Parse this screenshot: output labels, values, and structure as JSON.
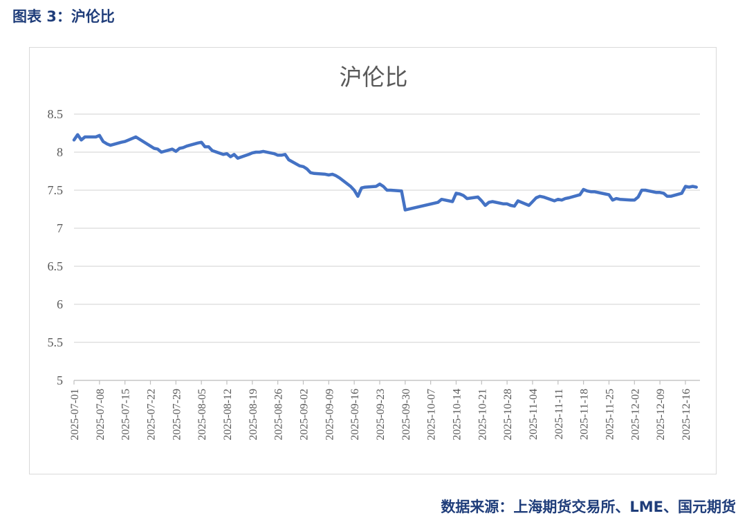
{
  "figure_caption": "图表 3：沪伦比",
  "source_note": "数据来源：上海期货交易所、LME、国元期货",
  "colors": {
    "line": "#4472c4",
    "grid": "#d9d9d9",
    "caption": "#1f3d7a",
    "axis_text": "#595959"
  },
  "chart_data": {
    "type": "line",
    "title": "沪伦比",
    "xlabel": "",
    "ylabel": "",
    "ylim": [
      5,
      8.5
    ],
    "yticks": [
      "5",
      "5.5",
      "6",
      "6.5",
      "7",
      "7.5",
      "8",
      "8.5"
    ],
    "x_start": "2025-07-01",
    "x_end": "2025-12-20",
    "xticks": [
      "2025-07-01",
      "2025-07-08",
      "2025-07-15",
      "2025-07-22",
      "2025-07-29",
      "2025-08-05",
      "2025-08-12",
      "2025-08-19",
      "2025-08-26",
      "2025-09-02",
      "2025-09-09",
      "2025-09-16",
      "2025-09-23",
      "2025-09-30",
      "2025-10-07",
      "2025-10-14",
      "2025-10-21",
      "2025-10-28",
      "2025-11-04",
      "2025-11-11",
      "2025-11-18",
      "2025-11-25",
      "2025-12-02",
      "2025-12-09",
      "2025-12-16"
    ],
    "grid": true,
    "legend": "none",
    "series": [
      {
        "x": [
          "2025-07-01",
          "2025-07-02",
          "2025-07-03",
          "2025-07-04",
          "2025-07-07",
          "2025-07-08",
          "2025-07-09",
          "2025-07-10",
          "2025-07-11",
          "2025-07-14",
          "2025-07-15",
          "2025-07-16",
          "2025-07-17",
          "2025-07-18",
          "2025-07-21",
          "2025-07-22",
          "2025-07-23",
          "2025-07-24",
          "2025-07-25",
          "2025-07-28",
          "2025-07-29",
          "2025-07-30",
          "2025-07-31",
          "2025-08-01",
          "2025-08-04",
          "2025-08-05",
          "2025-08-06",
          "2025-08-07",
          "2025-08-08",
          "2025-08-11",
          "2025-08-12",
          "2025-08-13",
          "2025-08-14",
          "2025-08-15",
          "2025-08-18",
          "2025-08-19",
          "2025-08-20",
          "2025-08-21",
          "2025-08-22",
          "2025-08-25",
          "2025-08-26",
          "2025-08-27",
          "2025-08-28",
          "2025-08-29",
          "2025-09-01",
          "2025-09-02",
          "2025-09-03",
          "2025-09-04",
          "2025-09-05",
          "2025-09-08",
          "2025-09-09",
          "2025-09-10",
          "2025-09-11",
          "2025-09-12",
          "2025-09-15",
          "2025-09-16",
          "2025-09-17",
          "2025-09-18",
          "2025-09-19",
          "2025-09-22",
          "2025-09-23",
          "2025-09-24",
          "2025-09-25",
          "2025-09-26",
          "2025-09-29",
          "2025-09-30",
          "2025-10-09",
          "2025-10-10",
          "2025-10-13",
          "2025-10-14",
          "2025-10-15",
          "2025-10-16",
          "2025-10-17",
          "2025-10-20",
          "2025-10-21",
          "2025-10-22",
          "2025-10-23",
          "2025-10-24",
          "2025-10-27",
          "2025-10-28",
          "2025-10-29",
          "2025-10-30",
          "2025-10-31",
          "2025-11-03",
          "2025-11-04",
          "2025-11-05",
          "2025-11-06",
          "2025-11-07",
          "2025-11-10",
          "2025-11-11",
          "2025-11-12",
          "2025-11-13",
          "2025-11-14",
          "2025-11-17",
          "2025-11-18",
          "2025-11-19",
          "2025-11-20",
          "2025-11-21",
          "2025-11-24",
          "2025-11-25",
          "2025-11-26",
          "2025-11-27",
          "2025-11-28",
          "2025-12-01",
          "2025-12-02",
          "2025-12-03",
          "2025-12-04",
          "2025-12-05",
          "2025-12-08",
          "2025-12-09",
          "2025-12-10",
          "2025-12-11",
          "2025-12-12",
          "2025-12-15",
          "2025-12-16",
          "2025-12-17",
          "2025-12-18",
          "2025-12-19"
        ],
        "values": [
          8.16,
          8.23,
          8.16,
          8.2,
          8.2,
          8.22,
          8.14,
          8.11,
          8.09,
          8.13,
          8.14,
          8.16,
          8.18,
          8.2,
          8.11,
          8.08,
          8.05,
          8.04,
          8.0,
          8.04,
          8.01,
          8.05,
          8.06,
          8.08,
          8.12,
          8.13,
          8.07,
          8.07,
          8.02,
          7.97,
          7.98,
          7.94,
          7.97,
          7.92,
          7.97,
          7.99,
          8.0,
          8.0,
          8.01,
          7.98,
          7.96,
          7.96,
          7.97,
          7.9,
          7.82,
          7.81,
          7.78,
          7.73,
          7.72,
          7.71,
          7.7,
          7.71,
          7.69,
          7.66,
          7.55,
          7.5,
          7.42,
          7.53,
          7.54,
          7.55,
          7.58,
          7.55,
          7.5,
          7.5,
          7.49,
          7.24,
          7.34,
          7.38,
          7.35,
          7.46,
          7.45,
          7.43,
          7.39,
          7.41,
          7.36,
          7.3,
          7.34,
          7.35,
          7.32,
          7.32,
          7.3,
          7.29,
          7.36,
          7.3,
          7.35,
          7.4,
          7.42,
          7.41,
          7.36,
          7.38,
          7.37,
          7.39,
          7.4,
          7.44,
          7.51,
          7.49,
          7.48,
          7.48,
          7.45,
          7.44,
          7.37,
          7.39,
          7.38,
          7.37,
          7.37,
          7.41,
          7.5,
          7.5,
          7.47,
          7.47,
          7.46,
          7.42,
          7.42,
          7.46,
          7.55,
          7.54,
          7.55,
          7.54
        ]
      }
    ]
  }
}
